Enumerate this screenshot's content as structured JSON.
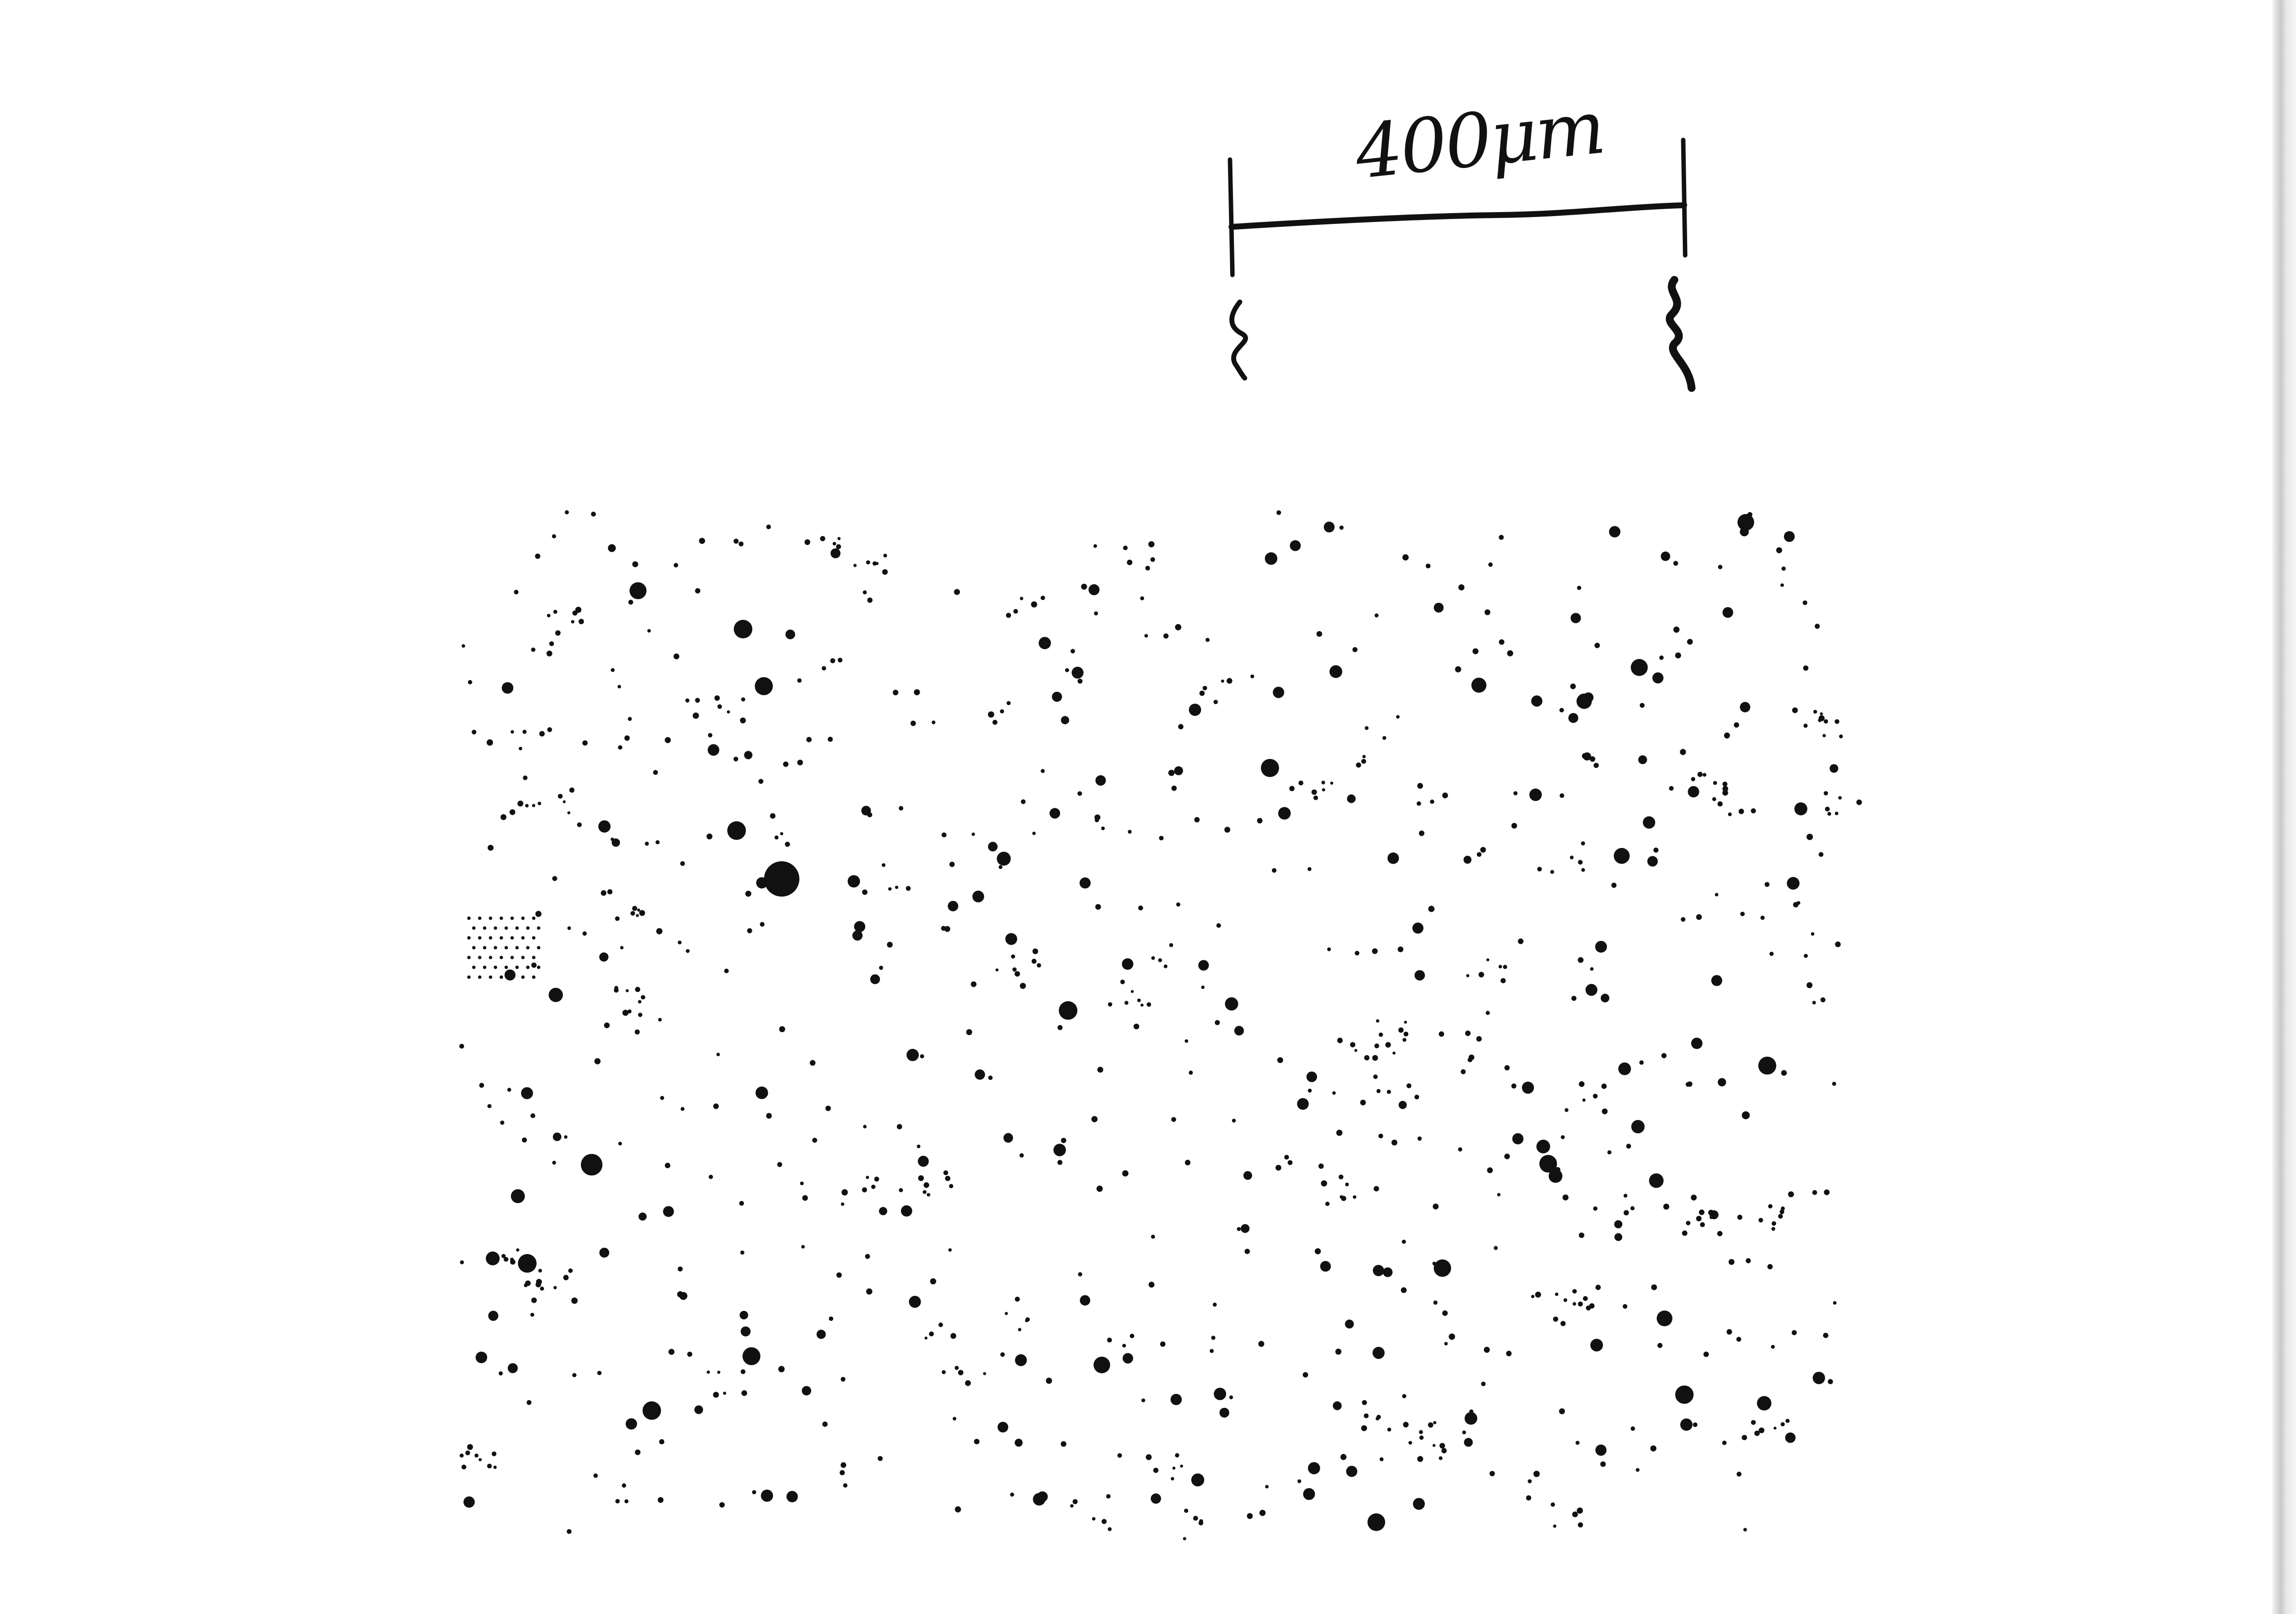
{
  "scale_bar": {
    "label": "400μm"
  },
  "colors": {
    "ink": "#111111",
    "paper": "#ffffff"
  }
}
